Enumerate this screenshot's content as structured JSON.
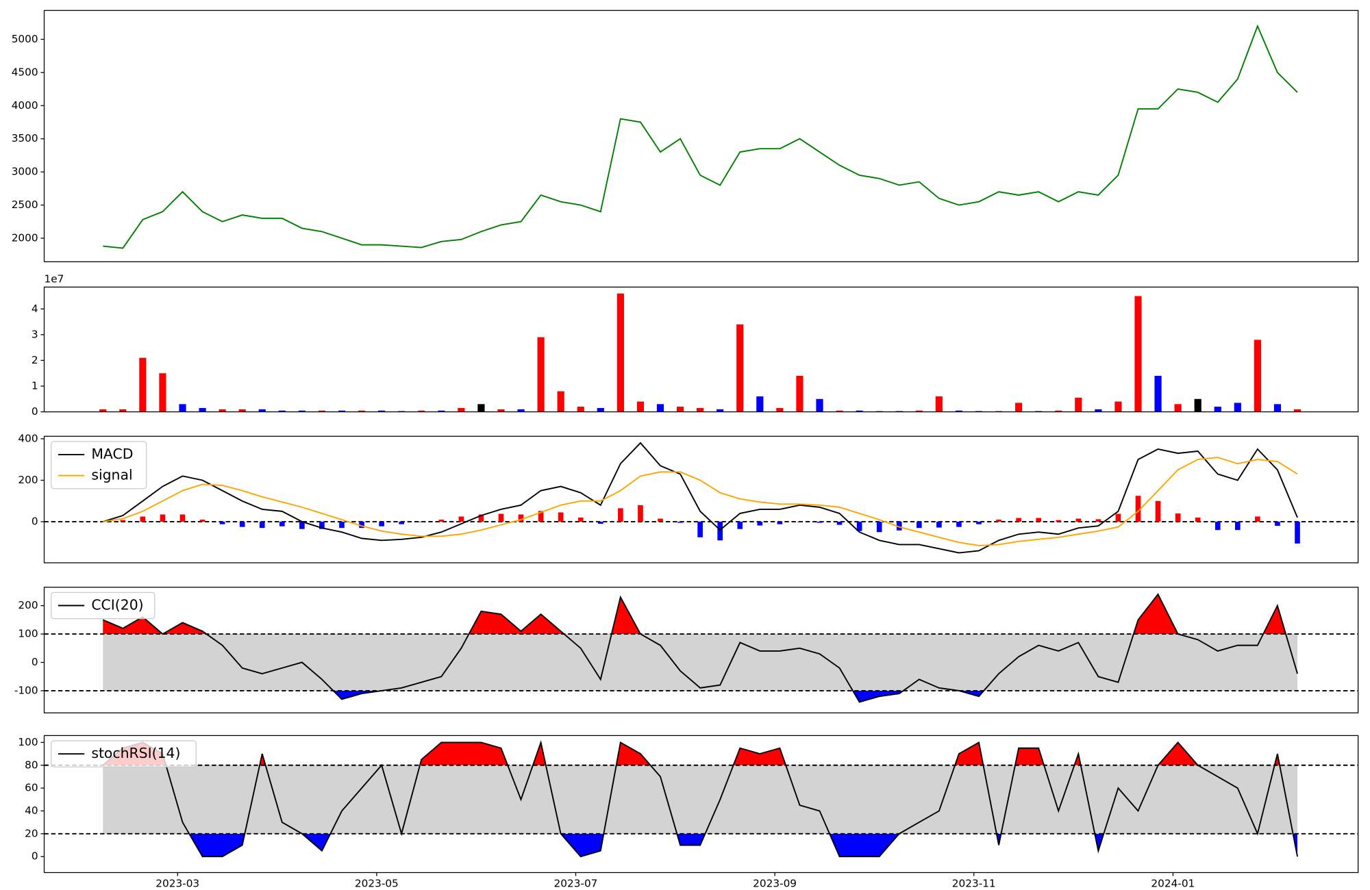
{
  "chart_data": [
    {
      "type": "line",
      "xlim": [
        1.66,
        14.86
      ],
      "ylim": [
        1645,
        5435
      ],
      "yticks": [
        2000,
        2500,
        3000,
        3500,
        4000,
        4500,
        5000
      ],
      "color": "green",
      "x": [
        2.25,
        2.45,
        2.65,
        2.85,
        3.05,
        3.25,
        3.45,
        3.65,
        3.85,
        4.05,
        4.25,
        4.45,
        4.65,
        4.85,
        5.05,
        5.25,
        5.45,
        5.65,
        5.85,
        6.05,
        6.25,
        6.45,
        6.65,
        6.85,
        7.05,
        7.25,
        7.45,
        7.65,
        7.85,
        8.05,
        8.25,
        8.45,
        8.65,
        8.85,
        9.05,
        9.25,
        9.45,
        9.65,
        9.85,
        10.05,
        10.25,
        10.45,
        10.65,
        10.85,
        11.05,
        11.25,
        11.45,
        11.65,
        11.85,
        12.05,
        12.25,
        12.45,
        12.65,
        12.85,
        13.05,
        13.25,
        13.45,
        13.65,
        13.85,
        14.05,
        14.25
      ],
      "values": [
        1880,
        1850,
        2280,
        2400,
        2700,
        2400,
        2250,
        2350,
        2300,
        2300,
        2150,
        2100,
        2000,
        1900,
        1900,
        1880,
        1860,
        1950,
        1980,
        2100,
        2200,
        2250,
        2650,
        2550,
        2500,
        2400,
        3800,
        3750,
        3300,
        3500,
        2950,
        2800,
        3300,
        3350,
        3350,
        3500,
        3300,
        3100,
        2950,
        2900,
        2800,
        2850,
        2600,
        2500,
        2550,
        2700,
        2650,
        2700,
        2550,
        2700,
        2650,
        2950,
        3950,
        3950,
        4250,
        4200,
        4050,
        4400,
        5200,
        4500,
        4200
      ]
    },
    {
      "type": "bar",
      "xlim": [
        1.66,
        14.86
      ],
      "ylim": [
        0,
        4.85
      ],
      "yticks": [
        0,
        1,
        2,
        3,
        4
      ],
      "offset_label": "1e7",
      "x": [
        2.25,
        2.45,
        2.65,
        2.85,
        3.05,
        3.25,
        3.45,
        3.65,
        3.85,
        4.05,
        4.25,
        4.45,
        4.65,
        4.85,
        5.05,
        5.25,
        5.45,
        5.65,
        5.85,
        6.05,
        6.25,
        6.45,
        6.65,
        6.85,
        7.05,
        7.25,
        7.45,
        7.65,
        7.85,
        8.05,
        8.25,
        8.45,
        8.65,
        8.85,
        9.05,
        9.25,
        9.45,
        9.65,
        9.85,
        10.05,
        10.25,
        10.45,
        10.65,
        10.85,
        11.05,
        11.25,
        11.45,
        11.65,
        11.85,
        12.05,
        12.25,
        12.45,
        12.65,
        12.85,
        13.05,
        13.25,
        13.45,
        13.65,
        13.85,
        14.05,
        14.25
      ],
      "values": [
        0.1,
        0.1,
        2.1,
        1.5,
        0.3,
        0.15,
        0.1,
        0.1,
        0.1,
        0.05,
        0.05,
        0.05,
        0.05,
        0.05,
        0.05,
        0.03,
        0.05,
        0.05,
        0.15,
        0.3,
        0.1,
        0.1,
        2.9,
        0.8,
        0.2,
        0.15,
        4.6,
        0.4,
        0.3,
        0.2,
        0.15,
        0.1,
        3.4,
        0.6,
        0.15,
        1.4,
        0.5,
        0.05,
        0.05,
        0.03,
        0.03,
        0.05,
        0.6,
        0.05,
        0.03,
        0.03,
        0.35,
        0.03,
        0.05,
        0.55,
        0.1,
        0.4,
        4.5,
        1.4,
        0.3,
        0.5,
        0.2,
        0.35,
        2.8,
        0.3,
        0.1
      ],
      "colors": [
        "red",
        "red",
        "red",
        "red",
        "blue",
        "blue",
        "red",
        "red",
        "blue",
        "blue",
        "blue",
        "red",
        "blue",
        "red",
        "blue",
        "blue",
        "red",
        "blue",
        "red",
        "black",
        "red",
        "blue",
        "red",
        "red",
        "red",
        "blue",
        "red",
        "red",
        "blue",
        "red",
        "red",
        "blue",
        "red",
        "blue",
        "red",
        "red",
        "blue",
        "red",
        "blue",
        "red",
        "blue",
        "red",
        "red",
        "blue",
        "blue",
        "red",
        "red",
        "blue",
        "red",
        "red",
        "blue",
        "red",
        "red",
        "blue",
        "red",
        "black",
        "blue",
        "blue",
        "red",
        "blue",
        "red"
      ]
    },
    {
      "type": "line",
      "xlim": [
        1.66,
        14.86
      ],
      "ylim": [
        -198,
        412
      ],
      "yticks": [
        0,
        200,
        400
      ],
      "hlines": [
        0
      ],
      "legend": "upper left",
      "x": [
        2.25,
        2.45,
        2.65,
        2.85,
        3.05,
        3.25,
        3.45,
        3.65,
        3.85,
        4.05,
        4.25,
        4.45,
        4.65,
        4.85,
        5.05,
        5.25,
        5.45,
        5.65,
        5.85,
        6.05,
        6.25,
        6.45,
        6.65,
        6.85,
        7.05,
        7.25,
        7.45,
        7.65,
        7.85,
        8.05,
        8.25,
        8.45,
        8.65,
        8.85,
        9.05,
        9.25,
        9.45,
        9.65,
        9.85,
        10.05,
        10.25,
        10.45,
        10.65,
        10.85,
        11.05,
        11.25,
        11.45,
        11.65,
        11.85,
        12.05,
        12.25,
        12.45,
        12.65,
        12.85,
        13.05,
        13.25,
        13.45,
        13.65,
        13.85,
        14.05,
        14.25
      ],
      "histogram": {
        "pos_color": "red",
        "neg_color": "blue",
        "values": [
          0,
          8,
          25,
          35,
          35,
          10,
          -12,
          -25,
          -30,
          -22,
          -35,
          -35,
          -30,
          -30,
          -22,
          -12,
          -2,
          10,
          25,
          35,
          38,
          35,
          52,
          45,
          20,
          -10,
          65,
          80,
          15,
          -5,
          -75,
          -90,
          -35,
          -18,
          -12,
          -2,
          -5,
          -15,
          -45,
          -50,
          -42,
          -30,
          -28,
          -25,
          -12,
          10,
          18,
          18,
          8,
          15,
          12,
          38,
          125,
          100,
          40,
          20,
          -40,
          -40,
          25,
          -20,
          -105
        ]
      },
      "series": [
        {
          "name": "MACD",
          "color": "black",
          "values": [
            0,
            30,
            100,
            170,
            220,
            200,
            150,
            100,
            60,
            50,
            0,
            -30,
            -50,
            -80,
            -90,
            -85,
            -75,
            -50,
            -10,
            30,
            60,
            80,
            150,
            170,
            140,
            80,
            280,
            380,
            270,
            230,
            50,
            -40,
            40,
            60,
            60,
            80,
            70,
            40,
            -50,
            -90,
            -110,
            -110,
            -130,
            -150,
            -140,
            -90,
            -60,
            -50,
            -60,
            -30,
            -20,
            50,
            300,
            350,
            330,
            340,
            230,
            200,
            350,
            250,
            20
          ]
        },
        {
          "name": "signal",
          "color": "orange",
          "values": [
            0,
            15,
            50,
            100,
            150,
            180,
            175,
            150,
            120,
            95,
            70,
            40,
            10,
            -20,
            -45,
            -60,
            -70,
            -70,
            -60,
            -40,
            -15,
            10,
            45,
            80,
            100,
            100,
            150,
            220,
            240,
            240,
            200,
            140,
            110,
            95,
            85,
            85,
            80,
            70,
            40,
            10,
            -25,
            -50,
            -75,
            -100,
            -115,
            -110,
            -95,
            -85,
            -75,
            -60,
            -45,
            -25,
            50,
            150,
            250,
            300,
            310,
            280,
            300,
            290,
            230
          ]
        }
      ]
    },
    {
      "type": "band",
      "xlim": [
        1.66,
        14.86
      ],
      "ylim": [
        -178,
        265
      ],
      "yticks": [
        -100,
        0,
        100,
        200
      ],
      "thresholds": [
        -100,
        100
      ],
      "upper_fill": "red",
      "lower_fill": "blue",
      "band_fill": "lightgray",
      "legend": "upper left",
      "x": [
        2.25,
        2.45,
        2.65,
        2.85,
        3.05,
        3.25,
        3.45,
        3.65,
        3.85,
        4.05,
        4.25,
        4.45,
        4.65,
        4.85,
        5.05,
        5.25,
        5.45,
        5.65,
        5.85,
        6.05,
        6.25,
        6.45,
        6.65,
        6.85,
        7.05,
        7.25,
        7.45,
        7.65,
        7.85,
        8.05,
        8.25,
        8.45,
        8.65,
        8.85,
        9.05,
        9.25,
        9.45,
        9.65,
        9.85,
        10.05,
        10.25,
        10.45,
        10.65,
        10.85,
        11.05,
        11.25,
        11.45,
        11.65,
        11.85,
        12.05,
        12.25,
        12.45,
        12.65,
        12.85,
        13.05,
        13.25,
        13.45,
        13.65,
        13.85,
        14.05,
        14.25
      ],
      "series": [
        {
          "name": "CCI(20)",
          "color": "black",
          "values": [
            150,
            120,
            160,
            100,
            140,
            110,
            60,
            -20,
            -40,
            -20,
            0,
            -60,
            -130,
            -110,
            -100,
            -90,
            -70,
            -50,
            50,
            180,
            170,
            110,
            170,
            110,
            50,
            -60,
            230,
            100,
            60,
            -30,
            -90,
            -80,
            70,
            40,
            40,
            50,
            30,
            -20,
            -140,
            -120,
            -110,
            -60,
            -90,
            -100,
            -120,
            -40,
            20,
            60,
            40,
            70,
            -50,
            -70,
            150,
            240,
            100,
            80,
            40,
            60,
            60,
            200,
            -40
          ]
        }
      ]
    },
    {
      "type": "band",
      "xlim": [
        1.66,
        14.86
      ],
      "ylim": [
        -14,
        106
      ],
      "yticks": [
        0,
        20,
        40,
        60,
        80,
        100
      ],
      "thresholds": [
        20,
        80
      ],
      "upper_fill": "red",
      "lower_fill": "blue",
      "band_fill": "lightgray",
      "legend": "upper left",
      "xticks": [
        {
          "value": 3,
          "label": "2023-03"
        },
        {
          "value": 5,
          "label": "2023-05"
        },
        {
          "value": 7,
          "label": "2023-07"
        },
        {
          "value": 9,
          "label": "2023-09"
        },
        {
          "value": 11,
          "label": "2023-11"
        },
        {
          "value": 13,
          "label": "2024-01"
        }
      ],
      "x": [
        2.25,
        2.45,
        2.65,
        2.85,
        3.05,
        3.25,
        3.45,
        3.65,
        3.85,
        4.05,
        4.25,
        4.45,
        4.65,
        4.85,
        5.05,
        5.25,
        5.45,
        5.65,
        5.85,
        6.05,
        6.25,
        6.45,
        6.65,
        6.85,
        7.05,
        7.25,
        7.45,
        7.65,
        7.85,
        8.05,
        8.25,
        8.45,
        8.65,
        8.85,
        9.05,
        9.25,
        9.45,
        9.65,
        9.85,
        10.05,
        10.25,
        10.45,
        10.65,
        10.85,
        11.05,
        11.25,
        11.45,
        11.65,
        11.85,
        12.05,
        12.25,
        12.45,
        12.65,
        12.85,
        13.05,
        13.25,
        13.45,
        13.65,
        13.85,
        14.05,
        14.25
      ],
      "series": [
        {
          "name": "stochRSI(14)",
          "color": "black",
          "values": [
            80,
            95,
            100,
            90,
            30,
            0,
            0,
            10,
            90,
            30,
            20,
            5,
            40,
            60,
            80,
            20,
            85,
            100,
            100,
            100,
            95,
            50,
            100,
            20,
            0,
            5,
            100,
            90,
            70,
            10,
            10,
            50,
            95,
            90,
            95,
            45,
            40,
            0,
            0,
            0,
            20,
            30,
            40,
            90,
            100,
            10,
            95,
            95,
            40,
            90,
            5,
            60,
            40,
            80,
            100,
            80,
            70,
            60,
            20,
            90,
            0
          ]
        }
      ]
    }
  ]
}
